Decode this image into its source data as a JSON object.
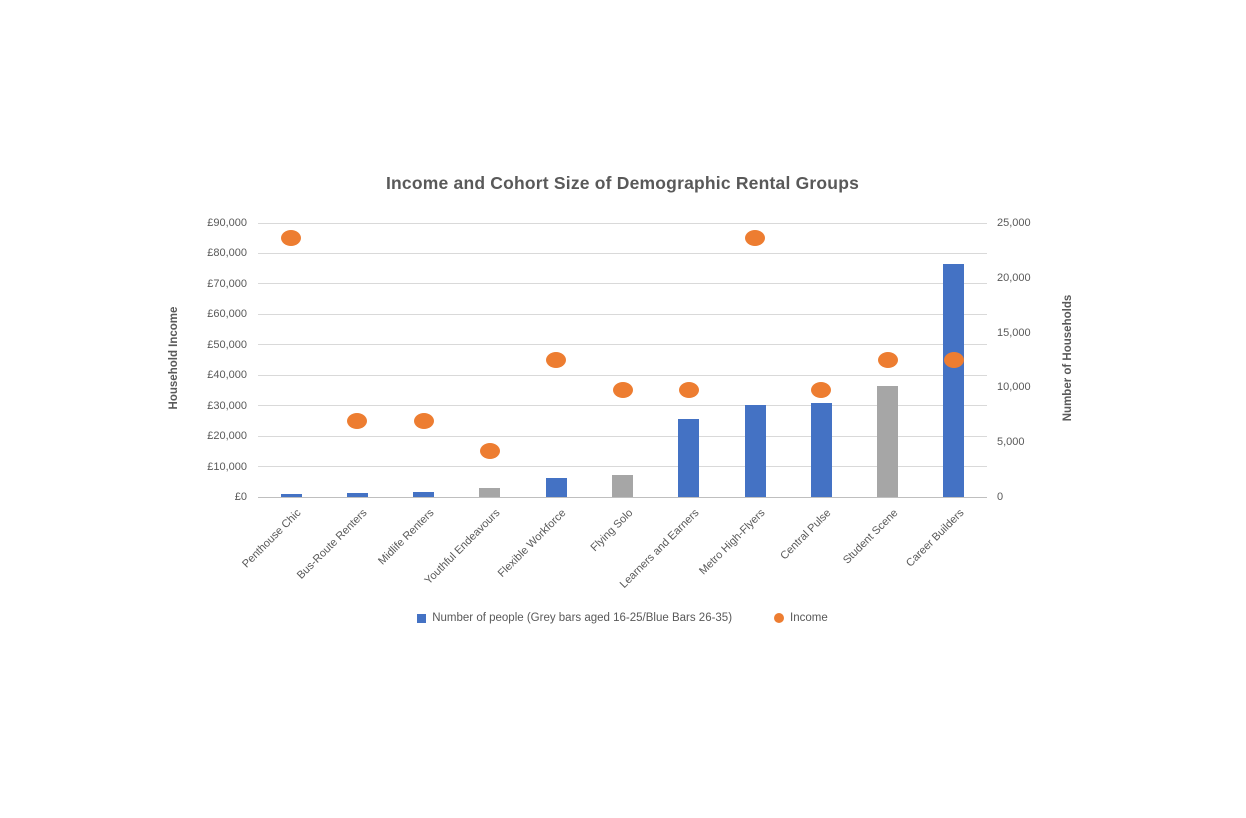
{
  "chart_data": {
    "type": "combo",
    "title": "Income and Cohort Size of Demographic Rental Groups",
    "categories": [
      "Penthouse Chic",
      "Bus-Route Renters",
      "Midlife Renters",
      "Youthful Endeavours",
      "Flexible Workforce",
      "Flying Solo",
      "Learners and Earners",
      "Metro High-Flyers",
      "Central Pulse",
      "Student Scene",
      "Career Builders"
    ],
    "series": [
      {
        "name": "Number of people (Grey bars aged 16-25/Blue Bars 26-35)",
        "type": "bar",
        "axis": "right",
        "values": [
          250,
          400,
          500,
          800,
          1750,
          2000,
          7100,
          8400,
          8600,
          10100,
          21300
        ],
        "age_group": [
          "26-35",
          "26-35",
          "26-35",
          "16-25",
          "26-35",
          "16-25",
          "26-35",
          "26-35",
          "26-35",
          "16-25",
          "26-35"
        ]
      },
      {
        "name": "Income",
        "type": "scatter",
        "axis": "left",
        "values": [
          85000,
          25000,
          25000,
          15000,
          45000,
          35000,
          35000,
          85000,
          35000,
          45000,
          45000
        ]
      }
    ],
    "axes": {
      "left": {
        "label": "Household Income",
        "min": 0,
        "max": 90000,
        "step": 10000,
        "ticks": [
          "£0",
          "£10,000",
          "£20,000",
          "£30,000",
          "£40,000",
          "£50,000",
          "£60,000",
          "£70,000",
          "£80,000",
          "£90,000"
        ]
      },
      "right": {
        "label": "Number of Households",
        "min": 0,
        "max": 25000,
        "step": 5000,
        "ticks": [
          "0",
          "5,000",
          "10,000",
          "15,000",
          "20,000",
          "25,000"
        ]
      }
    },
    "legend": {
      "position": "bottom",
      "items": [
        {
          "label": "Number of people (Grey bars aged 16-25/Blue Bars 26-35)",
          "marker": "square"
        },
        {
          "label": "Income",
          "marker": "circle"
        }
      ]
    },
    "grid": true,
    "colors": {
      "bar_blue": "#4472C4",
      "bar_grey": "#A6A6A6",
      "income_orange": "#ED7D31",
      "gridline": "#D9D9D9",
      "axis_line": "#BFBFBF",
      "text": "#595959",
      "title": "#595959"
    }
  }
}
